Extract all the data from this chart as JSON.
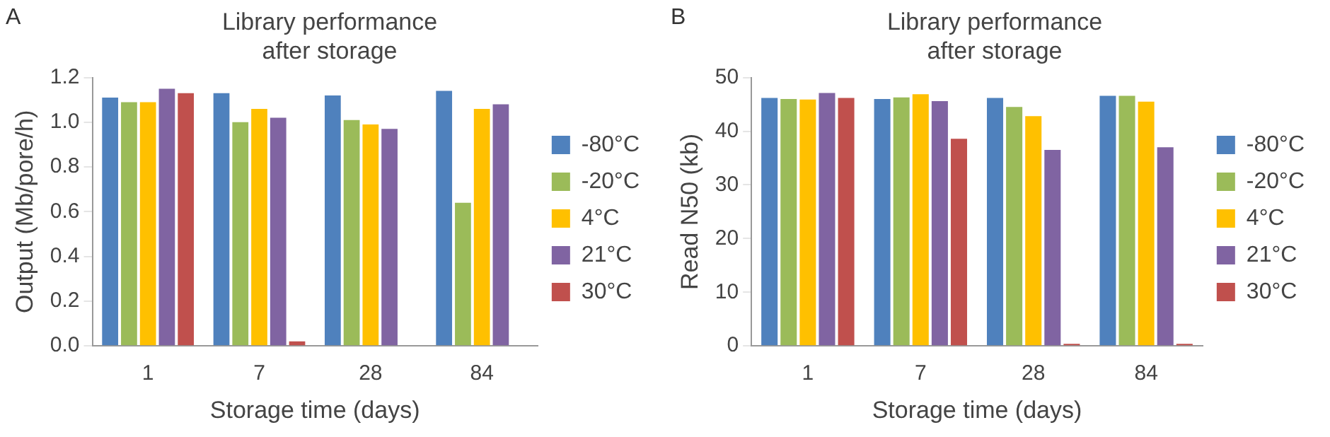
{
  "chart_data": [
    {
      "type": "bar",
      "title": "Library performance\nafter storage",
      "xlabel": "Storage time (days)",
      "ylabel": "Output (Mb/pore/h)",
      "annotations": [
        "A"
      ],
      "categories": [
        "1",
        "7",
        "28",
        "84"
      ],
      "ylim": [
        0,
        1.2
      ],
      "yticks": [
        {
          "value": 0,
          "label": "0.0"
        },
        0.2,
        0.4,
        0.6,
        0.8,
        {
          "value": 1,
          "label": "1.0"
        },
        1.2
      ],
      "legend": "right",
      "series": [
        {
          "name": "-80°C",
          "color": "#4f81bd",
          "values": [
            1.11,
            1.13,
            1.12,
            1.14
          ]
        },
        {
          "name": "-20°C",
          "color": "#9bbb59",
          "values": [
            1.09,
            1.0,
            1.01,
            0.64
          ]
        },
        {
          "name": "4°C",
          "color": "#ffc000",
          "values": [
            1.09,
            1.06,
            0.99,
            1.06
          ]
        },
        {
          "name": "21°C",
          "color": "#8064a2",
          "values": [
            1.15,
            1.02,
            0.97,
            1.08
          ]
        },
        {
          "name": "30°C",
          "color": "#c0504d",
          "values": [
            1.13,
            0.02,
            null,
            null
          ]
        }
      ]
    },
    {
      "type": "bar",
      "title": "Library performance\nafter storage",
      "xlabel": "Storage time (days)",
      "ylabel": "Read N50 (kb)",
      "annotations": [
        "B"
      ],
      "categories": [
        "1",
        "7",
        "28",
        "84"
      ],
      "ylim": [
        0,
        50
      ],
      "yticks": [
        0,
        10,
        20,
        30,
        40,
        50
      ],
      "legend": "right",
      "series": [
        {
          "name": "-80°C",
          "color": "#4f81bd",
          "values": [
            46.2,
            46.0,
            46.2,
            46.6
          ]
        },
        {
          "name": "-20°C",
          "color": "#9bbb59",
          "values": [
            46.0,
            46.3,
            44.5,
            46.6
          ]
        },
        {
          "name": "4°C",
          "color": "#ffc000",
          "values": [
            45.9,
            46.9,
            42.8,
            45.5
          ]
        },
        {
          "name": "21°C",
          "color": "#8064a2",
          "values": [
            47.1,
            45.6,
            36.5,
            37.0
          ]
        },
        {
          "name": "30°C",
          "color": "#c0504d",
          "values": [
            46.2,
            38.6,
            0.4,
            0.4
          ]
        }
      ]
    }
  ]
}
